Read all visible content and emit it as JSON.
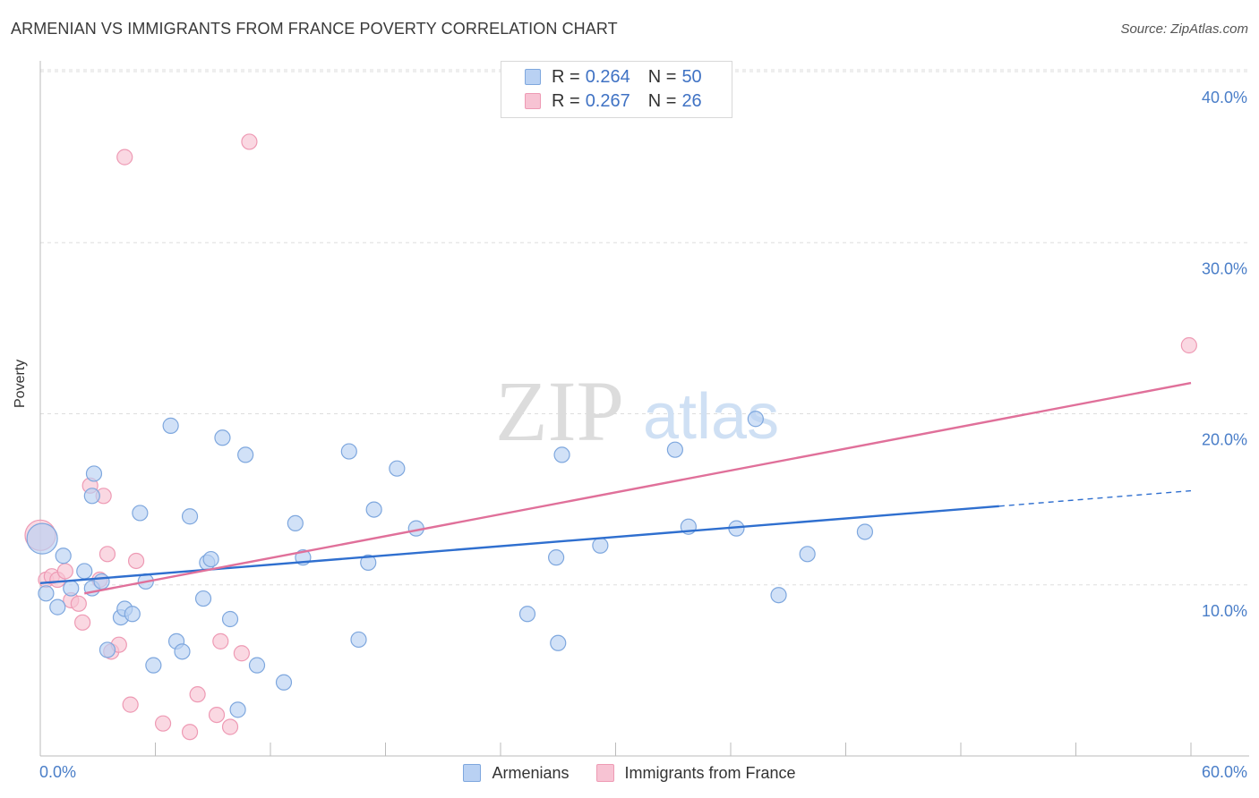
{
  "header": {
    "title": "ARMENIAN VS IMMIGRANTS FROM FRANCE POVERTY CORRELATION CHART",
    "source": "Source: ZipAtlas.com"
  },
  "watermark": {
    "zip": "ZIP",
    "atlas": "atlas"
  },
  "legend": {
    "rows": [
      {
        "r_label": "R =",
        "r_value": "0.264",
        "n_label": "N =",
        "n_value": "50"
      },
      {
        "r_label": "R =",
        "r_value": "0.267",
        "n_label": "N =",
        "n_value": "26"
      }
    ]
  },
  "colors": {
    "armenian_fill": "#b9d1f3",
    "armenian_stroke": "#7ea7de",
    "armenian_line": "#2f6fcf",
    "france_fill": "#f7c3d3",
    "france_stroke": "#ee9ab4",
    "france_line": "#e0709a",
    "axis_text": "#4a7ec8",
    "grid": "#dddddd"
  },
  "chart_data": {
    "type": "scatter",
    "title": "ARMENIAN VS IMMIGRANTS FROM FRANCE POVERTY CORRELATION CHART",
    "xlabel": "",
    "ylabel": "Poverty",
    "xlim": [
      0,
      60
    ],
    "ylim": [
      0,
      40
    ],
    "x_tick_labels": [
      "0.0%",
      "60.0%"
    ],
    "y_tick_labels": [
      "10.0%",
      "20.0%",
      "30.0%",
      "40.0%"
    ],
    "y_tick_values": [
      10,
      20,
      30,
      40
    ],
    "series": [
      {
        "name": "Armenians",
        "r": 0.264,
        "n": 50,
        "points": [
          [
            0.1,
            12.7
          ],
          [
            0.3,
            9.5
          ],
          [
            0.9,
            8.7
          ],
          [
            1.2,
            11.7
          ],
          [
            1.6,
            9.8
          ],
          [
            2.3,
            10.8
          ],
          [
            2.7,
            15.2
          ],
          [
            2.8,
            16.5
          ],
          [
            2.7,
            9.8
          ],
          [
            3.2,
            10.2
          ],
          [
            3.5,
            6.2
          ],
          [
            4.2,
            8.1
          ],
          [
            4.4,
            8.6
          ],
          [
            4.8,
            8.3
          ],
          [
            5.2,
            14.2
          ],
          [
            5.5,
            10.2
          ],
          [
            5.9,
            5.3
          ],
          [
            6.8,
            19.3
          ],
          [
            7.1,
            6.7
          ],
          [
            7.4,
            6.1
          ],
          [
            7.8,
            14.0
          ],
          [
            8.5,
            9.2
          ],
          [
            8.7,
            11.3
          ],
          [
            8.9,
            11.5
          ],
          [
            9.5,
            18.6
          ],
          [
            9.9,
            8.0
          ],
          [
            10.7,
            17.6
          ],
          [
            11.3,
            5.3
          ],
          [
            12.7,
            4.3
          ],
          [
            13.3,
            13.6
          ],
          [
            13.7,
            11.6
          ],
          [
            16.1,
            17.8
          ],
          [
            16.6,
            6.8
          ],
          [
            17.1,
            11.3
          ],
          [
            17.4,
            14.4
          ],
          [
            18.6,
            16.8
          ],
          [
            19.6,
            13.3
          ],
          [
            25.4,
            8.3
          ],
          [
            26.9,
            11.6
          ],
          [
            27.0,
            6.6
          ],
          [
            27.2,
            17.6
          ],
          [
            29.2,
            12.3
          ],
          [
            33.1,
            17.9
          ],
          [
            33.8,
            13.4
          ],
          [
            36.3,
            13.3
          ],
          [
            37.3,
            19.7
          ],
          [
            38.5,
            9.4
          ],
          [
            40.0,
            11.8
          ],
          [
            43.0,
            13.1
          ],
          [
            10.3,
            2.7
          ]
        ]
      },
      {
        "name": "Immigrants from France",
        "r": 0.267,
        "n": 26,
        "points": [
          [
            0.0,
            12.9
          ],
          [
            0.3,
            10.3
          ],
          [
            0.6,
            10.5
          ],
          [
            0.9,
            10.3
          ],
          [
            1.3,
            10.8
          ],
          [
            1.6,
            9.1
          ],
          [
            2.0,
            8.9
          ],
          [
            2.2,
            7.8
          ],
          [
            2.6,
            15.8
          ],
          [
            3.1,
            10.3
          ],
          [
            3.3,
            15.2
          ],
          [
            3.5,
            11.8
          ],
          [
            3.7,
            6.1
          ],
          [
            4.1,
            6.5
          ],
          [
            4.7,
            3.0
          ],
          [
            5.0,
            11.4
          ],
          [
            6.4,
            1.9
          ],
          [
            7.8,
            1.4
          ],
          [
            8.2,
            3.6
          ],
          [
            9.2,
            2.4
          ],
          [
            9.4,
            6.7
          ],
          [
            9.9,
            1.7
          ],
          [
            10.5,
            6.0
          ],
          [
            4.4,
            35.0
          ],
          [
            10.9,
            35.9
          ],
          [
            59.9,
            24.0
          ]
        ]
      }
    ],
    "trendlines": [
      {
        "series": "Armenians",
        "x_start": 0,
        "y_start": 10.1,
        "x_end": 50,
        "y_end": 14.6,
        "dashed_x_end": 60,
        "dashed_y_end": 15.5
      },
      {
        "series": "Immigrants from France",
        "x_start": 2.3,
        "y_start": 9.5,
        "x_end": 60,
        "y_end": 21.8
      }
    ]
  },
  "bottom_legend": {
    "items": [
      {
        "label": "Armenians"
      },
      {
        "label": "Immigrants from France"
      }
    ]
  }
}
